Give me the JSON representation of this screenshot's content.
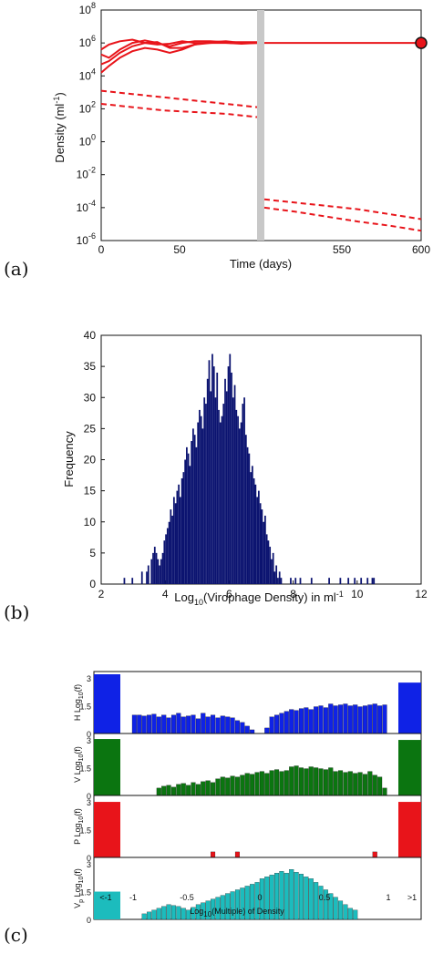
{
  "chart_data": [
    {
      "panel": "(a)",
      "type": "line",
      "xlabel": "Time (days)",
      "ylabel": "Density (ml",
      "ylabel_sup": "-1",
      "ylabel_close": ")",
      "yscale": "log",
      "ylim_log10": [
        -6,
        8
      ],
      "yticks": [
        {
          "base": "10",
          "exp": "8"
        },
        {
          "base": "10",
          "exp": "6"
        },
        {
          "base": "10",
          "exp": "4"
        },
        {
          "base": "10",
          "exp": "2"
        },
        {
          "base": "10",
          "exp": "0"
        },
        {
          "base": "10",
          "exp": "-2"
        },
        {
          "base": "10",
          "exp": "-4"
        },
        {
          "base": "10",
          "exp": "-6"
        }
      ],
      "xticks_left": [
        "0",
        "50"
      ],
      "xticks_right": [
        "550",
        "600"
      ],
      "x_segments": {
        "left": [
          0,
          100
        ],
        "right": [
          500,
          600
        ]
      },
      "series_color": "#e8141a",
      "solid_left": [
        {
          "x": [
            0,
            5,
            12,
            20,
            28,
            36,
            44,
            52,
            60,
            70,
            80,
            90,
            100
          ],
          "y": [
            5.6,
            5.9,
            6.1,
            6.2,
            6.0,
            5.9,
            5.95,
            6.1,
            6.0,
            6.0,
            6.05,
            6.05,
            6.05
          ]
        },
        {
          "x": [
            0,
            5,
            12,
            20,
            28,
            36,
            44,
            52,
            60,
            70,
            80,
            90,
            100
          ],
          "y": [
            5.3,
            5.1,
            5.6,
            6.0,
            6.15,
            6.0,
            5.8,
            6.0,
            6.1,
            6.1,
            6.05,
            6.0,
            6.0
          ]
        },
        {
          "x": [
            0,
            5,
            12,
            20,
            28,
            36,
            44,
            52,
            60,
            70,
            80,
            90,
            100
          ],
          "y": [
            4.7,
            4.9,
            5.4,
            5.8,
            6.0,
            6.05,
            5.7,
            5.7,
            5.9,
            6.05,
            6.1,
            6.0,
            6.0
          ]
        },
        {
          "x": [
            0,
            5,
            12,
            20,
            28,
            36,
            44,
            52,
            60,
            70,
            80,
            90,
            100
          ],
          "y": [
            4.2,
            4.6,
            5.1,
            5.5,
            5.7,
            5.6,
            5.4,
            5.6,
            5.9,
            6.0,
            6.0,
            5.95,
            6.0
          ]
        }
      ],
      "solid_right": {
        "x": [
          500,
          600
        ],
        "y": [
          6.0,
          6.0
        ]
      },
      "dashed_left": [
        {
          "x": [
            0,
            20,
            40,
            60,
            80,
            100
          ],
          "y": [
            3.1,
            2.9,
            2.7,
            2.5,
            2.3,
            2.1
          ]
        },
        {
          "x": [
            0,
            20,
            40,
            60,
            80,
            100
          ],
          "y": [
            2.3,
            2.1,
            1.9,
            1.8,
            1.7,
            1.5
          ]
        }
      ],
      "dashed_right": [
        {
          "x": [
            500,
            520,
            540,
            560,
            580,
            600
          ],
          "y": [
            -3.5,
            -3.7,
            -3.9,
            -4.1,
            -4.4,
            -4.7
          ]
        },
        {
          "x": [
            500,
            520,
            540,
            560,
            580,
            600
          ],
          "y": [
            -4.0,
            -4.25,
            -4.55,
            -4.85,
            -5.1,
            -5.4
          ]
        }
      ],
      "end_marker": {
        "x": 600,
        "y": 6.0
      }
    },
    {
      "panel": "(b)",
      "type": "bar",
      "xlabel": "Log",
      "xlabel_sub": "10",
      "xlabel_rest": "(Virophage Density) in ml",
      "xlabel_sup": "-1",
      "ylabel": "Frequency",
      "xlim": [
        2,
        12
      ],
      "ylim": [
        0,
        40
      ],
      "xticks": [
        "2",
        "4",
        "6",
        "8",
        "10",
        "12"
      ],
      "yticks": [
        "0",
        "5",
        "10",
        "15",
        "20",
        "25",
        "30",
        "35",
        "40"
      ],
      "bar_color": "#0b1370",
      "bin_start": 2.7,
      "bin_width": 0.05,
      "values": [
        1,
        0,
        0,
        0,
        0,
        1,
        0,
        0,
        0,
        0,
        0,
        2,
        0,
        0,
        2,
        3,
        0,
        4,
        5,
        6,
        5,
        4,
        3,
        4,
        5,
        7,
        8,
        9,
        10,
        12,
        11,
        14,
        13,
        15,
        16,
        14,
        17,
        18,
        20,
        22,
        21,
        19,
        23,
        25,
        24,
        22,
        26,
        28,
        27,
        25,
        30,
        29,
        33,
        36,
        31,
        37,
        35,
        30,
        34,
        28,
        26,
        27,
        29,
        33,
        31,
        35,
        37,
        34,
        30,
        32,
        28,
        27,
        25,
        26,
        29,
        30,
        24,
        22,
        21,
        18,
        19,
        17,
        16,
        14,
        15,
        13,
        12,
        10,
        11,
        8,
        7,
        6,
        4,
        5,
        2,
        3,
        1,
        2,
        1,
        0,
        0,
        0,
        0,
        0,
        1,
        0,
        0,
        1,
        0,
        0,
        1,
        0,
        0,
        0,
        0,
        0,
        0,
        1,
        0,
        0,
        0,
        0,
        0,
        0,
        0,
        0,
        0,
        0,
        1,
        0,
        0,
        0,
        0,
        0,
        0,
        1,
        0,
        0,
        0,
        0,
        1,
        0,
        0,
        0,
        1,
        0,
        0,
        0,
        1,
        0,
        0,
        0,
        1,
        0,
        0,
        1,
        1,
        0,
        0,
        0,
        0
      ]
    },
    {
      "panel": "(c)",
      "type": "bar",
      "xlabel": "Log",
      "xlabel_sub": "10",
      "xlabel_rest": "(Multiple) of Density",
      "xticks": [
        "<-1",
        "-1",
        "-0.5",
        "0",
        "0.5",
        "1",
        ">1"
      ],
      "yticks": [
        "0",
        "1.5",
        "3"
      ],
      "ylim": [
        0,
        3.2
      ],
      "subplots": [
        {
          "name": "H",
          "ylabel_prefix": "H Log",
          "color": "#0f22e6",
          "left_bin": 3.2,
          "right_bin": 2.75,
          "values": [
            1.0,
            1.0,
            0.95,
            1.0,
            1.05,
            0.9,
            1.0,
            0.85,
            1.0,
            1.1,
            0.9,
            0.95,
            1.0,
            0.8,
            1.1,
            0.9,
            1.0,
            0.85,
            0.95,
            0.9,
            0.85,
            0.7,
            0.6,
            0.4,
            0.2,
            0.0,
            0.0,
            0.3,
            0.9,
            1.0,
            1.1,
            1.2,
            1.3,
            1.25,
            1.35,
            1.4,
            1.3,
            1.45,
            1.5,
            1.4,
            1.6,
            1.5,
            1.55,
            1.6,
            1.5,
            1.55,
            1.45,
            1.5,
            1.55,
            1.6,
            1.5,
            1.55
          ]
        },
        {
          "name": "V",
          "ylabel_prefix": "V Log",
          "color": "#0b7510",
          "left_bin": 3.05,
          "right_bin": 3.0,
          "values": [
            0,
            0,
            0,
            0,
            0,
            0.4,
            0.5,
            0.55,
            0.45,
            0.6,
            0.65,
            0.55,
            0.7,
            0.6,
            0.75,
            0.8,
            0.7,
            0.9,
            1.0,
            0.95,
            1.05,
            1.0,
            1.1,
            1.2,
            1.15,
            1.25,
            1.3,
            1.2,
            1.35,
            1.4,
            1.3,
            1.35,
            1.55,
            1.6,
            1.5,
            1.45,
            1.55,
            1.5,
            1.45,
            1.4,
            1.5,
            1.3,
            1.35,
            1.25,
            1.3,
            1.2,
            1.25,
            1.15,
            1.3,
            1.1,
            1.0,
            0.4
          ]
        },
        {
          "name": "P",
          "ylabel_prefix": "P Log",
          "color": "#e8141a",
          "left_bin": 3.0,
          "right_bin": 3.0,
          "values": [
            0,
            0,
            0,
            0,
            0,
            0,
            0,
            0,
            0,
            0,
            0,
            0,
            0,
            0,
            0,
            0,
            0.3,
            0,
            0,
            0,
            0,
            0.3,
            0,
            0,
            0,
            0,
            0,
            0,
            0,
            0,
            0,
            0,
            0,
            0,
            0,
            0,
            0,
            0,
            0,
            0,
            0,
            0,
            0,
            0,
            0,
            0,
            0,
            0,
            0,
            0.3,
            0,
            0
          ]
        },
        {
          "name": "Vp",
          "ylabel_prefix": "V",
          "ylabel_sub_p": "p",
          "ylabel_rest": " Log",
          "color": "#1cbcbd",
          "left_bin": 1.5,
          "right_bin": 0,
          "values": [
            0,
            0,
            0.3,
            0.4,
            0.5,
            0.6,
            0.7,
            0.8,
            0.75,
            0.7,
            0.6,
            0.5,
            0.65,
            0.8,
            0.9,
            1.0,
            1.1,
            1.2,
            1.3,
            1.4,
            1.5,
            1.6,
            1.7,
            1.8,
            1.9,
            2.0,
            2.2,
            2.3,
            2.4,
            2.5,
            2.6,
            2.5,
            2.7,
            2.55,
            2.45,
            2.3,
            2.2,
            2.0,
            1.8,
            1.6,
            1.4,
            1.2,
            1.0,
            0.8,
            0.6,
            0.5,
            0,
            0,
            0,
            0,
            0,
            0
          ]
        }
      ]
    }
  ]
}
